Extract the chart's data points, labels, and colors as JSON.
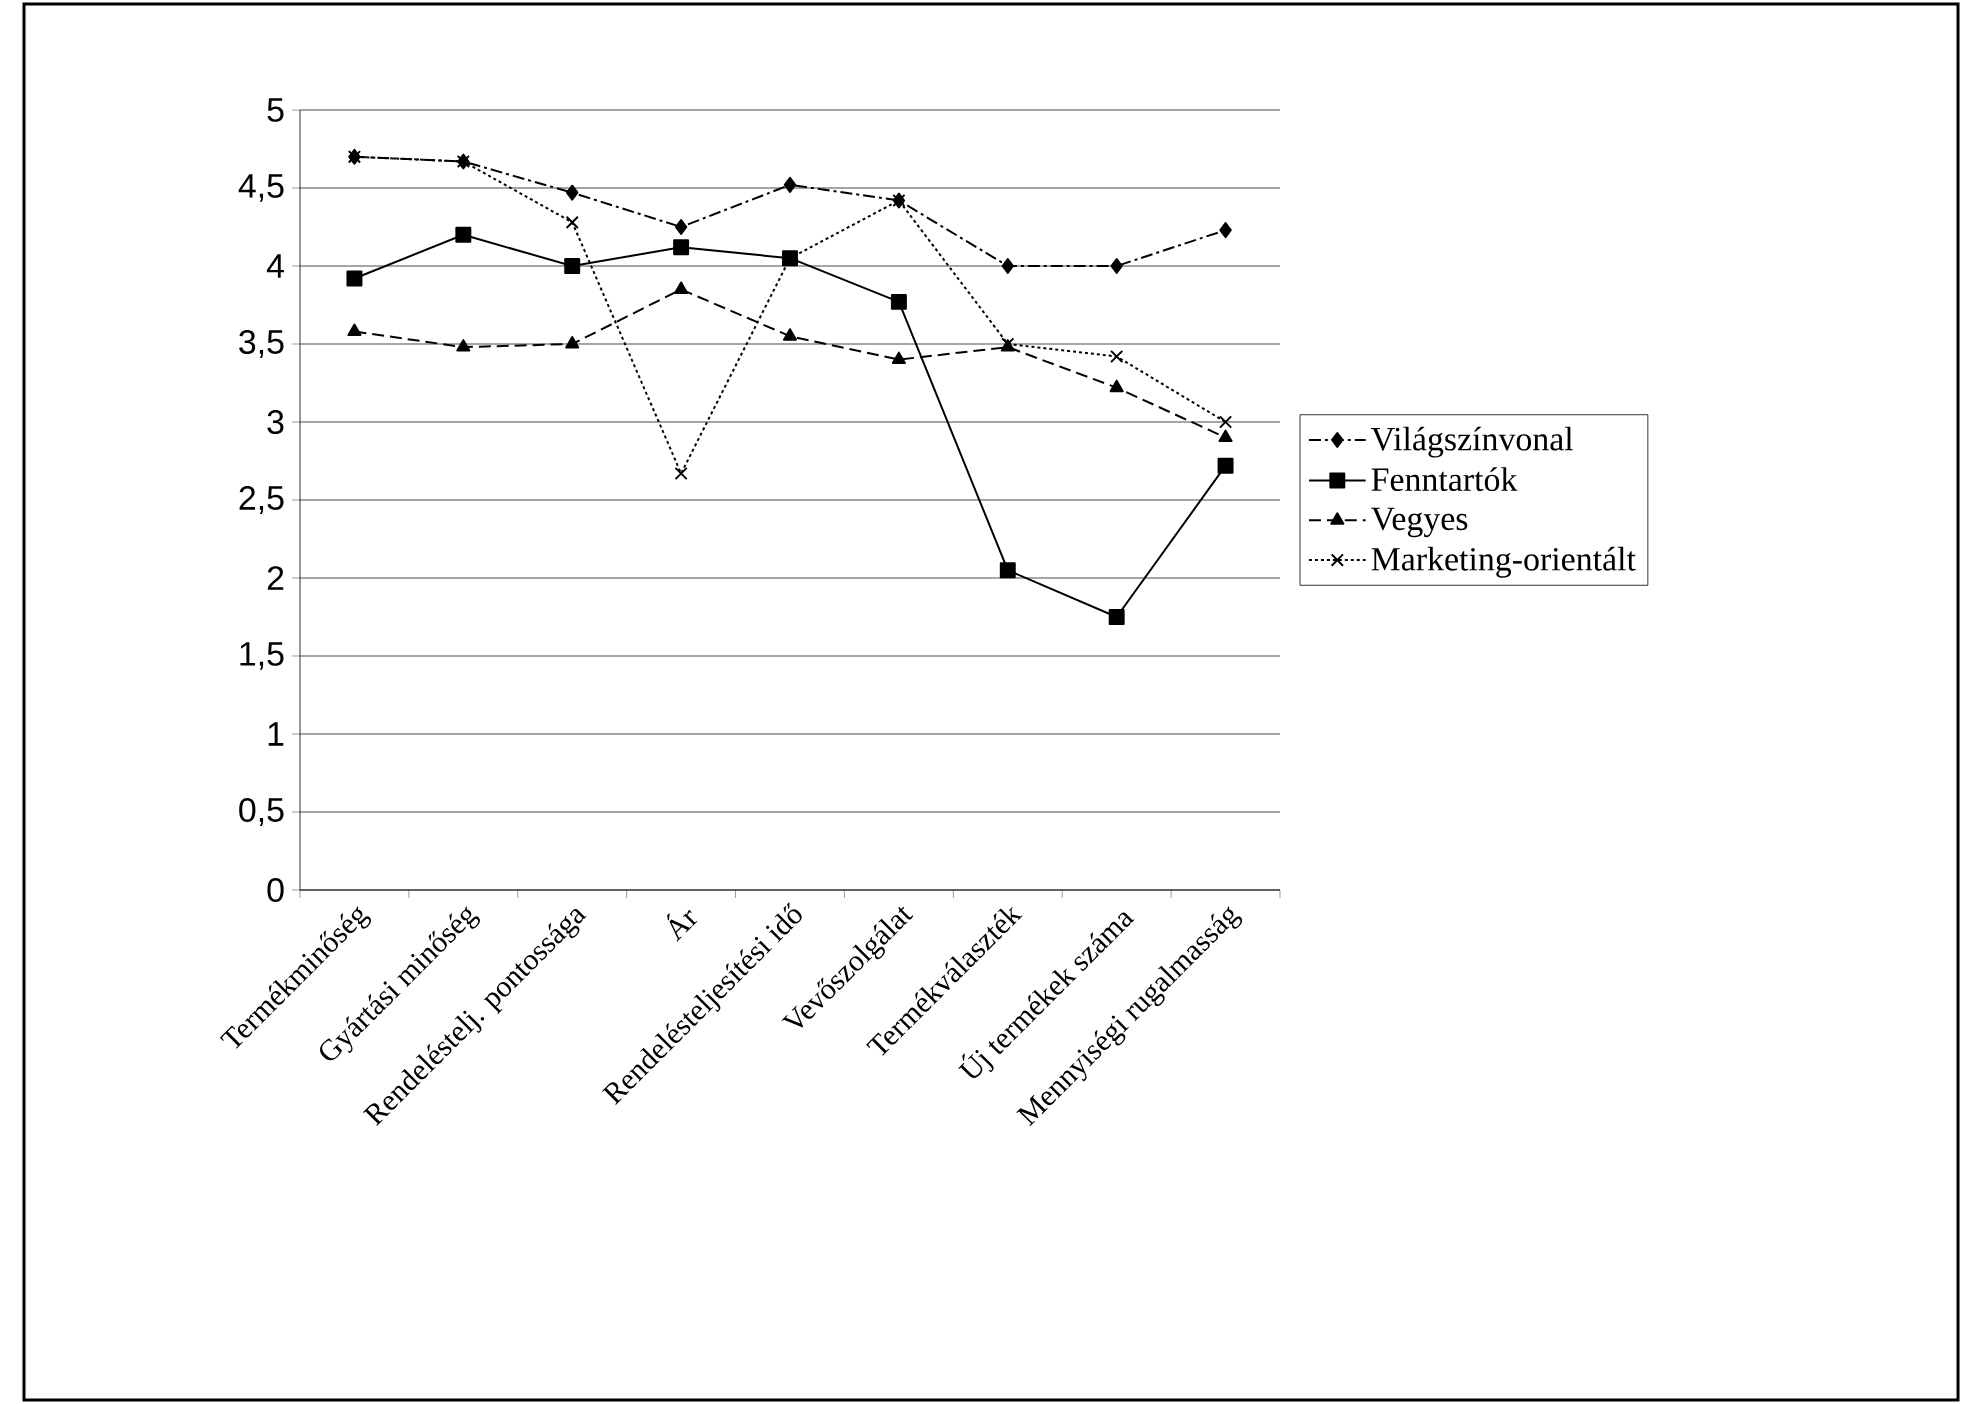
{
  "chart_data": {
    "type": "line",
    "categories": [
      "Termékminőség",
      "Gyártási minőség",
      "Rendeléstelj. pontossága",
      "Ár",
      "Rendelésteljesítési idő",
      "Vevőszolgálat",
      "Termékválaszték",
      "Új termékek száma",
      "Mennyiségi rugalmasság"
    ],
    "series": [
      {
        "name": "Világszínvonal",
        "color": "#000000",
        "marker": "diamond",
        "line_style": "dashdot",
        "values": [
          4.7,
          4.67,
          4.47,
          4.25,
          4.52,
          4.42,
          4.0,
          4.0,
          4.23
        ]
      },
      {
        "name": "Fenntartók",
        "color": "#000000",
        "marker": "square",
        "line_style": "solid",
        "values": [
          3.92,
          4.2,
          4.0,
          4.12,
          4.05,
          3.77,
          2.05,
          1.75,
          2.72
        ]
      },
      {
        "name": "Vegyes",
        "color": "#000000",
        "marker": "triangle",
        "line_style": "dashed",
        "values": [
          3.58,
          3.48,
          3.5,
          3.85,
          3.55,
          3.4,
          3.48,
          3.22,
          2.9
        ]
      },
      {
        "name": "Marketing-orientált",
        "color": "#000000",
        "marker": "cross",
        "line_style": "dotted",
        "values": [
          4.7,
          4.67,
          4.28,
          2.67,
          4.05,
          4.42,
          3.5,
          3.42,
          3.0
        ]
      }
    ],
    "ylim": [
      0,
      5
    ],
    "yticks": [
      0,
      {
        "value": 0.5,
        "label": "0,5"
      },
      1,
      {
        "value": 1.5,
        "label": "1,5"
      },
      2,
      {
        "value": 2.5,
        "label": "2,5"
      },
      3,
      {
        "value": 3.5,
        "label": "3,5"
      },
      4,
      {
        "value": 4.5,
        "label": "4,5"
      },
      5
    ],
    "grid": "y",
    "legend": "right"
  }
}
